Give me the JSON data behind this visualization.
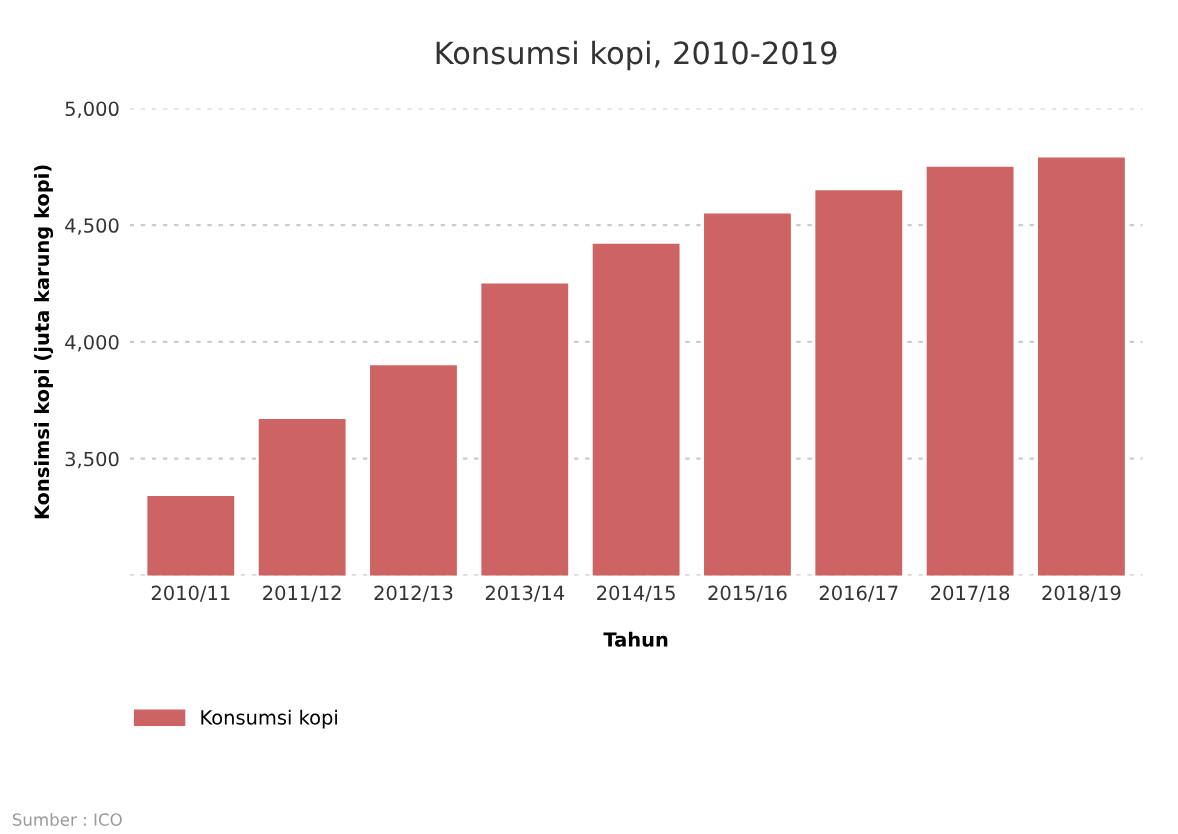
{
  "chart_data": {
    "type": "bar",
    "title": "Konsumsi kopi, 2010-2019",
    "xlabel": "Tahun",
    "ylabel": "Konsimsi kopi (juta karung kopi)",
    "categories": [
      "2010/11",
      "2011/12",
      "2012/13",
      "2013/14",
      "2014/15",
      "2015/16",
      "2016/17",
      "2017/18",
      "2018/19"
    ],
    "series": [
      {
        "name": "Konsumsi kopi",
        "color": "#cd6363",
        "values": [
          3340,
          3670,
          3900,
          4250,
          4420,
          4550,
          4650,
          4750,
          4790
        ]
      }
    ],
    "ylim": [
      3000,
      5000
    ],
    "yticks": [
      {
        "value": 3000,
        "label": null
      },
      {
        "value": 3500,
        "label": "3,500"
      },
      {
        "value": 4000,
        "label": "4,000"
      },
      {
        "value": 4500,
        "label": "4,500"
      },
      {
        "value": 5000,
        "label": "5,000"
      }
    ],
    "grid": "y",
    "legend": "bottom left",
    "annotations": [
      "Sumber : ICO"
    ]
  }
}
